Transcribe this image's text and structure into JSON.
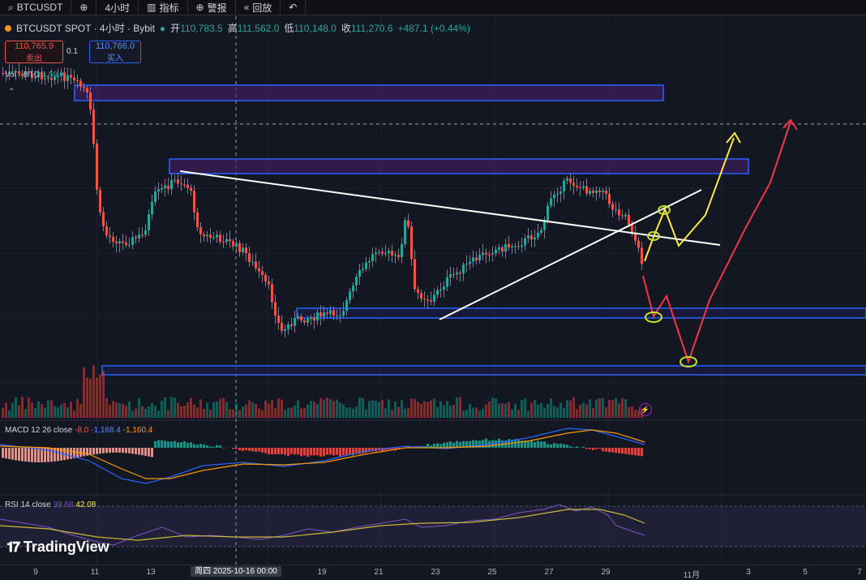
{
  "toolbar": {
    "symbol": "BTCUSDT",
    "interval": "4小时",
    "indicators_label": "指标",
    "replay_label": "回放",
    "compare_label": "警报"
  },
  "header": {
    "title": "BTCUSDT SPOT · 4小时 · Bybit",
    "open_label": "开",
    "open": "110,783.5",
    "high_label": "高",
    "high": "111,562.0",
    "low_label": "低",
    "low": "110,148.0",
    "close_label": "收",
    "close": "111,270.6",
    "change": "+487.1 (+0.44%)"
  },
  "trade": {
    "sell_price": "110,765.9",
    "sell_label": "卖出",
    "spread": "0.1",
    "buy_price": "110,766.0",
    "buy_label": "买入"
  },
  "volume": {
    "label": "Vol · BTC",
    "value": "1.59 K"
  },
  "macd": {
    "label": "MACD 12 26 close",
    "v1": "-8.0",
    "v2": "-1,168.4",
    "v3": "-1,160.4"
  },
  "rsi": {
    "label": "RSI 14 close",
    "v1": "39.68",
    "v2": "42.08"
  },
  "brand": "TradingView",
  "xaxis": {
    "ticks": [
      "9",
      "11",
      "13",
      "19",
      "21",
      "23",
      "25",
      "27",
      "29",
      "11月",
      "3",
      "5",
      "7"
    ],
    "cursor": "周四 2025-10-16   00:00"
  },
  "colors": {
    "up": "#26a69a",
    "down": "#ef5350",
    "zone": "#2962ff",
    "yellow": "#ffeb3b",
    "red_path": "#f23645",
    "white": "#ffffff"
  }
}
